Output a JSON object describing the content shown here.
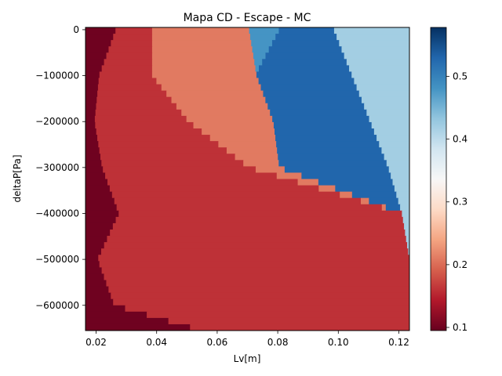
{
  "chart_data": {
    "type": "heatmap",
    "title": "Mapa CD - Escape - MC",
    "xlabel": "Lv[m]",
    "ylabel": "deltaP[Pa]",
    "xlim": [
      0.0165,
      0.1235
    ],
    "ylim": [
      -655000,
      5000
    ],
    "x_ticks": [
      0.02,
      0.04,
      0.06,
      0.08,
      0.1,
      0.12
    ],
    "x_tick_labels": [
      "0.02",
      "0.04",
      "0.06",
      "0.08",
      "0.10",
      "0.12"
    ],
    "y_ticks": [
      0,
      -100000,
      -200000,
      -300000,
      -400000,
      -500000,
      -600000
    ],
    "y_tick_labels": [
      "0",
      "−100000",
      "−200000",
      "−300000",
      "−400000",
      "−500000",
      "−600000"
    ],
    "colorbar": {
      "cmap": "RdBu",
      "vmin": 0.095,
      "vmax": 0.578,
      "ticks": [
        0.1,
        0.2,
        0.3,
        0.4,
        0.5
      ],
      "tick_labels": [
        "0.1",
        "0.2",
        "0.3",
        "0.4",
        "0.5"
      ]
    },
    "boundaries": {
      "deltaP": [
        0,
        -100000,
        -200000,
        -300000,
        -400000,
        -500000,
        -600000,
        -650000
      ],
      "b1_dark_red_to_red": [
        0.0265,
        0.021,
        0.0195,
        0.022,
        0.0275,
        0.0205,
        0.026,
        0.052
      ],
      "b2_red_to_salmon": [
        0.0385,
        0.0385,
        0.0505,
        0.0705,
        0.121,
        0.1235,
        0.1235,
        0.1235
      ],
      "b3_salmon_to_peach": [
        0.0705,
        0.073,
        0.0785,
        0.0805,
        0.121,
        0.1235,
        0.1235,
        0.1235
      ],
      "b4_peach_to_white": [
        0.0625,
        0.0705,
        0.0785,
        0.0805,
        0.121,
        0.1235,
        0.1235,
        0.1235
      ],
      "b5_white_to_light_blue": [
        0.0705,
        0.0725,
        0.0785,
        0.0805,
        0.121,
        0.1235,
        0.1235,
        0.1235
      ],
      "b6_light_blue_to_dark_blue": [
        0.0805,
        0.0725,
        0.0785,
        0.0805,
        0.121,
        0.1235,
        0.1235,
        0.1235
      ],
      "b7_dark_blue_to_light_blue": [
        0.0985,
        0.1045,
        0.1105,
        0.1165,
        0.121,
        0.1235,
        0.1235,
        0.1235
      ]
    },
    "regions": [
      {
        "name": "dark red band",
        "value": 0.1
      },
      {
        "name": "red band",
        "value": 0.16
      },
      {
        "name": "salmon band",
        "value": 0.21
      },
      {
        "name": "peach band",
        "value": 0.26
      },
      {
        "name": "white band",
        "value": 0.37
      },
      {
        "name": "light blue band",
        "value": 0.48
      },
      {
        "name": "dark blue band",
        "value": 0.53
      },
      {
        "name": "pale blue band",
        "value": 0.42
      }
    ],
    "grid": false,
    "legend": "colorbar right"
  }
}
